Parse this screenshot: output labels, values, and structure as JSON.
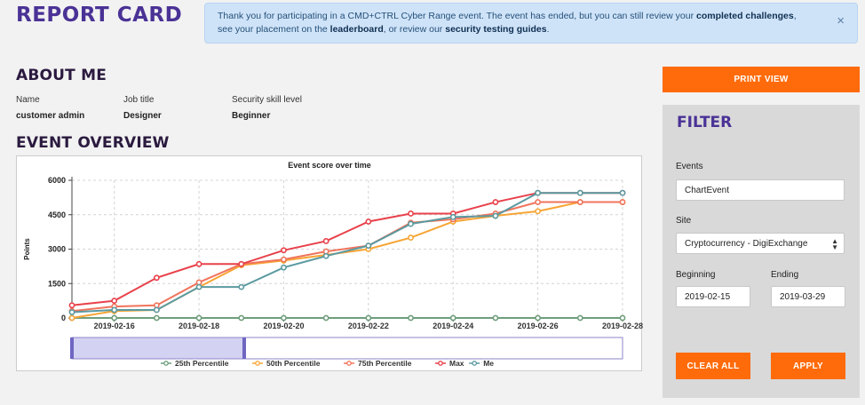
{
  "page": {
    "title": "REPORT CARD"
  },
  "notice": {
    "text1": "Thank you for participating in a CMD+CTRL Cyber Range event. The event has ended, but you can still review  your ",
    "link1": "completed challenges",
    "text2": ",",
    "text3": "see your placement on the ",
    "link2": "leaderboard",
    "text4": ", or review our ",
    "link3": "security testing guides",
    "text5": ".",
    "close": "×"
  },
  "about": {
    "title": "ABOUT ME",
    "name_label": "Name",
    "name_value": "customer admin",
    "job_label": "Job title",
    "job_value": "Designer",
    "skill_label": "Security skill level",
    "skill_value": "Beginner"
  },
  "overview": {
    "title": "EVENT OVERVIEW"
  },
  "print_button": "PRINT VIEW",
  "filter": {
    "title": "FILTER",
    "events_label": "Events",
    "events_value": "ChartEvent",
    "site_label": "Site",
    "site_value": "Cryptocurrency - DigiExchange",
    "beginning_label": "Beginning",
    "beginning_value": "2019-02-15",
    "ending_label": "Ending",
    "ending_value": "2019-03-29",
    "clear_button": "CLEAR ALL",
    "apply_button": "APPLY"
  },
  "chart_data": {
    "type": "line",
    "title": "Event score over time",
    "ylabel": "Points",
    "xlabel": "",
    "ylim": [
      0,
      6000
    ],
    "yticks": [
      0,
      1500,
      3000,
      4500,
      6000
    ],
    "x": [
      "2019-02-15",
      "2019-02-16",
      "2019-02-17",
      "2019-02-18",
      "2019-02-19",
      "2019-02-20",
      "2019-02-21",
      "2019-02-22",
      "2019-02-23",
      "2019-02-24",
      "2019-02-25",
      "2019-02-26",
      "2019-02-27",
      "2019-02-28"
    ],
    "xtick_labels": [
      "2019-02-16",
      "2019-02-18",
      "2019-02-20",
      "2019-02-22",
      "2019-02-24",
      "2019-02-26",
      "2019-02-28"
    ],
    "grid": true,
    "legend_position": "bottom",
    "series": [
      {
        "name": "25th Percentile",
        "color": "#6e9e7c",
        "values": [
          0,
          0,
          0,
          0,
          0,
          0,
          0,
          0,
          0,
          0,
          0,
          0,
          0,
          0
        ]
      },
      {
        "name": "50th Percentile",
        "color": "#f7a535",
        "values": [
          0,
          300,
          350,
          1350,
          2300,
          2500,
          2750,
          3000,
          3500,
          4200,
          4450,
          4650,
          5050,
          5050
        ]
      },
      {
        "name": "75th Percentile",
        "color": "#f0745c",
        "values": [
          300,
          500,
          550,
          1550,
          2350,
          2550,
          2900,
          3150,
          4150,
          4300,
          4550,
          5050,
          5050,
          5050
        ]
      },
      {
        "name": "Max",
        "color": "#e8414b",
        "values": [
          550,
          750,
          1750,
          2350,
          2350,
          2950,
          3350,
          4200,
          4550,
          4550,
          5050,
          5450,
          5450,
          5450
        ]
      },
      {
        "name": "Me",
        "color": "#5b9aa0",
        "values": [
          250,
          350,
          350,
          1350,
          1350,
          2200,
          2700,
          3150,
          4100,
          4400,
          4450,
          5450,
          5450,
          5450
        ]
      }
    ]
  }
}
